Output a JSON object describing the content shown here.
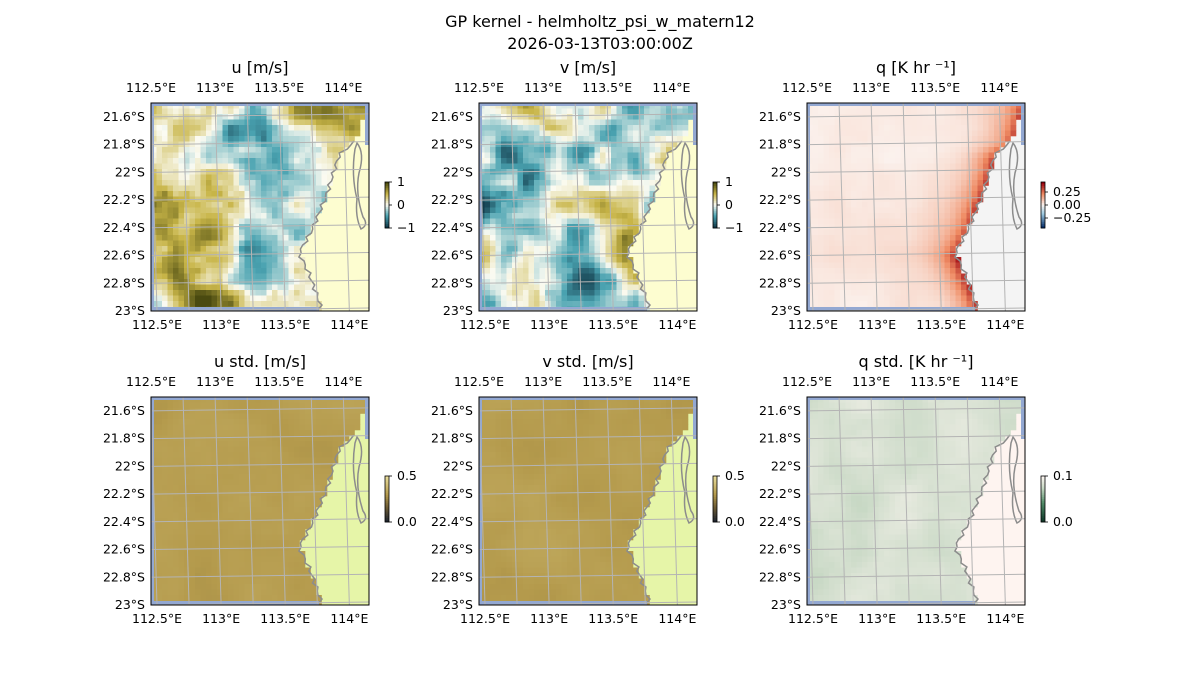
{
  "figure": {
    "title_line1": "GP kernel - helmholtz_psi_w_matern12",
    "title_line2": "2026-03-13T03:00:00Z"
  },
  "chart_data": [
    {
      "type": "heatmap",
      "id": "u",
      "title": "u [m/s]",
      "colormap": "diverging-teal-white-olive",
      "colorbar_ticks": [
        "1",
        "0",
        "−1"
      ],
      "clim": [
        -1,
        1
      ],
      "lon_range": [
        112.5,
        114.2
      ],
      "lat_range": [
        -23.0,
        -21.5
      ],
      "lon_ticks": [
        "112.5°E",
        "113°E",
        "113.5°E",
        "114°E"
      ],
      "lat_ticks": [
        "21.6°S",
        "21.8°S",
        "22°S",
        "22.2°S",
        "22.4°S",
        "22.6°S",
        "22.8°S",
        "23°S"
      ],
      "land_color": "#fdfdd0",
      "grid": true
    },
    {
      "type": "heatmap",
      "id": "v",
      "title": "v [m/s]",
      "colormap": "diverging-teal-white-olive",
      "colorbar_ticks": [
        "1",
        "0",
        "−1"
      ],
      "clim": [
        -1,
        1
      ],
      "lon_range": [
        112.5,
        114.2
      ],
      "lat_range": [
        -23.0,
        -21.5
      ],
      "lon_ticks": [
        "112.5°E",
        "113°E",
        "113.5°E",
        "114°E"
      ],
      "lat_ticks": [
        "21.6°S",
        "21.8°S",
        "22°S",
        "22.2°S",
        "22.4°S",
        "22.6°S",
        "22.8°S",
        "23°S"
      ],
      "land_color": "#fdfdd0",
      "grid": true
    },
    {
      "type": "heatmap",
      "id": "q",
      "title": "q [K hr ⁻¹]",
      "colormap": "diverging-blue-white-red",
      "colorbar_ticks": [
        "0.25",
        "0.00",
        "−0.25"
      ],
      "clim": [
        -0.35,
        0.35
      ],
      "lon_range": [
        112.5,
        114.2
      ],
      "lat_range": [
        -23.0,
        -21.5
      ],
      "lon_ticks": [
        "112.5°E",
        "113°E",
        "113.5°E",
        "114°E"
      ],
      "lat_ticks": [
        "21.6°S",
        "21.8°S",
        "22°S",
        "22.2°S",
        "22.4°S",
        "22.6°S",
        "22.8°S",
        "23°S"
      ],
      "land_color": "#f4f4f4",
      "grid": true
    },
    {
      "type": "heatmap",
      "id": "u_std",
      "title": "u std. [m/s]",
      "colormap": "sequential-earth",
      "colorbar_ticks": [
        "0.5",
        "0.0"
      ],
      "clim": [
        0,
        0.5
      ],
      "lon_range": [
        112.5,
        114.2
      ],
      "lat_range": [
        -23.0,
        -21.5
      ],
      "lon_ticks": [
        "112.5°E",
        "113°E",
        "113.5°E",
        "114°E"
      ],
      "lat_ticks": [
        "21.6°S",
        "21.8°S",
        "22°S",
        "22.2°S",
        "22.4°S",
        "22.6°S",
        "22.8°S",
        "23°S"
      ],
      "land_color": "#e6f5a8",
      "grid": true
    },
    {
      "type": "heatmap",
      "id": "v_std",
      "title": "v std. [m/s]",
      "colormap": "sequential-earth",
      "colorbar_ticks": [
        "0.5",
        "0.0"
      ],
      "clim": [
        0,
        0.5
      ],
      "lon_range": [
        112.5,
        114.2
      ],
      "lat_range": [
        -23.0,
        -21.5
      ],
      "lon_ticks": [
        "112.5°E",
        "113°E",
        "113.5°E",
        "114°E"
      ],
      "lat_ticks": [
        "21.6°S",
        "21.8°S",
        "22°S",
        "22.2°S",
        "22.4°S",
        "22.6°S",
        "22.8°S",
        "23°S"
      ],
      "land_color": "#e6f5a8",
      "grid": true
    },
    {
      "type": "heatmap",
      "id": "q_std",
      "title": "q std. [K hr ⁻¹]",
      "colormap": "sequential-green",
      "colorbar_ticks": [
        "0.1",
        "0.0"
      ],
      "clim": [
        0,
        0.1
      ],
      "lon_range": [
        112.5,
        114.2
      ],
      "lat_range": [
        -23.0,
        -21.5
      ],
      "lon_ticks": [
        "112.5°E",
        "113°E",
        "113.5°E",
        "114°E"
      ],
      "lat_ticks": [
        "21.6°S",
        "21.8°S",
        "22°S",
        "22.2°S",
        "22.4°S",
        "22.6°S",
        "22.8°S",
        "23°S"
      ],
      "land_color": "#fef4f0",
      "grid": true
    }
  ],
  "colors": {
    "border_strip": "#93a8d2",
    "coastline": "#8c8c8c",
    "gridline": "#b4b4b4"
  }
}
